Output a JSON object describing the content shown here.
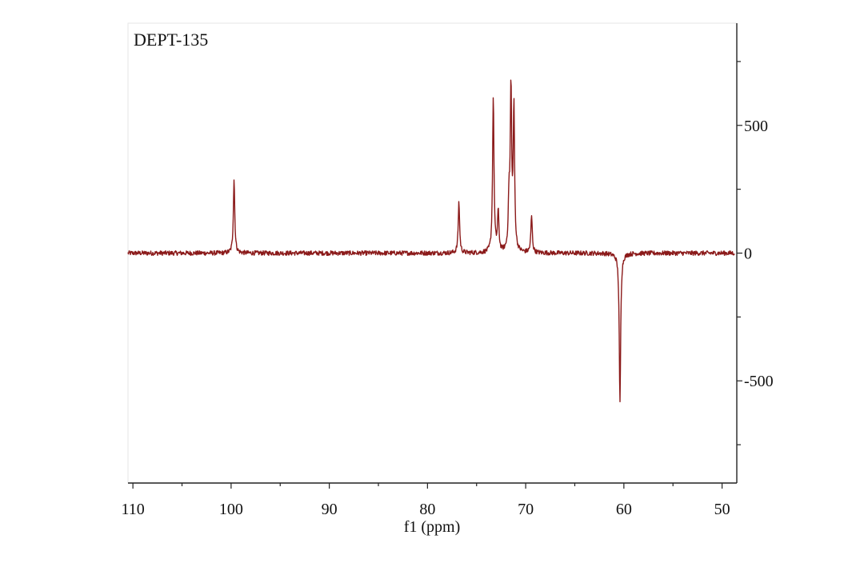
{
  "chart_data": {
    "type": "line",
    "title": "DEPT-135",
    "xlabel": "f1 (ppm)",
    "ylabel": "",
    "x_reversed": true,
    "xlim": [
      110.5,
      48.5
    ],
    "ylim": [
      -900,
      900
    ],
    "x_ticks": [
      110,
      100,
      90,
      80,
      70,
      60,
      50
    ],
    "x_tick_labels": [
      "110",
      "100",
      "90",
      "80",
      "70",
      "60",
      "50"
    ],
    "y_ticks": [
      500,
      0,
      -500
    ],
    "y_tick_labels": [
      "500",
      "0",
      "-500"
    ],
    "y_axis_side": "right",
    "grid": false,
    "line_color": "#8b1a1a",
    "noise_amplitude": 9,
    "peaks": [
      {
        "ppm": 99.7,
        "intensity": 290
      },
      {
        "ppm": 76.8,
        "intensity": 200
      },
      {
        "ppm": 73.3,
        "intensity": 610
      },
      {
        "ppm": 72.8,
        "intensity": 155
      },
      {
        "ppm": 71.7,
        "intensity": 190
      },
      {
        "ppm": 71.5,
        "intensity": 625
      },
      {
        "ppm": 71.2,
        "intensity": 555
      },
      {
        "ppm": 69.4,
        "intensity": 145
      },
      {
        "ppm": 60.4,
        "intensity": -590
      }
    ]
  }
}
